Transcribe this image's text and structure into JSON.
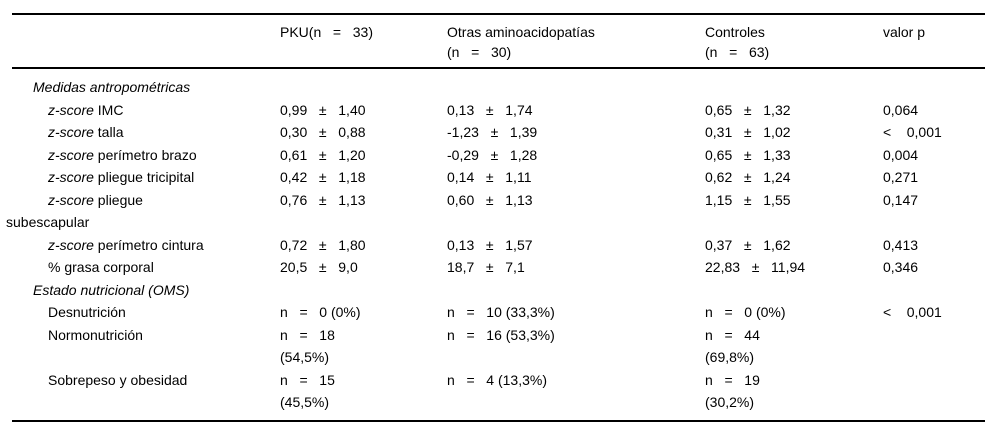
{
  "style": {
    "background": "#ffffff",
    "text_color": "#000000",
    "rule_color": "#000000"
  },
  "table": {
    "columns": {
      "label": "",
      "col1": "PKU(n   =   33)",
      "col2": "Otras aminoacidopatías\n(n   =   30)",
      "col3": "Controles\n(n   =   63)",
      "col4": "valor p"
    },
    "rows": [
      {
        "type": "section",
        "em": "Medidas antropométricas",
        "rest": "",
        "c1": "",
        "c2": "",
        "c3": "",
        "c4": ""
      },
      {
        "type": "item",
        "em": "z-score",
        "rest": " IMC",
        "c1": "0,99   ±   1,40",
        "c2": "0,13   ±   1,74",
        "c3": "0,65   ±   1,32",
        "c4": "0,064"
      },
      {
        "type": "item",
        "em": "z-score",
        "rest": " talla",
        "c1": "0,30   ±   0,88",
        "c2": "-1,23   ±   1,39",
        "c3": "0,31   ±   1,02",
        "c4": "<    0,001"
      },
      {
        "type": "item",
        "em": "z-score",
        "rest": " perímetro brazo",
        "c1": "0,61   ±   1,20",
        "c2": "-0,29   ±   1,28",
        "c3": "0,65   ±   1,33",
        "c4": "0,004"
      },
      {
        "type": "item",
        "em": "z-score",
        "rest": " pliegue tricipital",
        "c1": "0,42   ±   1,18",
        "c2": "0,14   ±   1,11",
        "c3": "0,62   ±   1,24",
        "c4": "0,271"
      },
      {
        "type": "item",
        "em": "z-score",
        "rest": " pliegue\nsubescapular",
        "c1": "0,76   ±   1,13",
        "c2": "0,60   ±   1,13",
        "c3": "1,15   ±   1,55",
        "c4": "0,147"
      },
      {
        "type": "item",
        "em": "z-score",
        "rest": " perímetro cintura",
        "c1": "0,72   ±   1,80",
        "c2": "0,13   ±   1,57",
        "c3": "0,37   ±   1,62",
        "c4": "0,413"
      },
      {
        "type": "item",
        "em": "",
        "rest": "% grasa corporal",
        "c1": "20,5   ±   9,0",
        "c2": "18,7   ±   7,1",
        "c3": "22,83   ±   11,94",
        "c4": "0,346"
      },
      {
        "type": "section",
        "em": "Estado nutricional (OMS)",
        "rest": "",
        "c1": "",
        "c2": "",
        "c3": "",
        "c4": ""
      },
      {
        "type": "item",
        "em": "",
        "rest": "Desnutrición",
        "c1": "n   =   0 (0%)",
        "c2": "n   =   10 (33,3%)",
        "c3": "n   =   0 (0%)",
        "c4": "<    0,001"
      },
      {
        "type": "item",
        "em": "",
        "rest": "Normonutrición",
        "c1": "n   =   18\n(54,5%)",
        "c2": "n   =   16 (53,3%)",
        "c3": "n   =   44\n(69,8%)",
        "c4": ""
      },
      {
        "type": "item",
        "em": "",
        "rest": "Sobrepeso y obesidad",
        "c1": "n   =   15\n(45,5%)",
        "c2": "n   =   4 (13,3%)",
        "c3": "n   =   19\n(30,2%)",
        "c4": ""
      }
    ]
  }
}
